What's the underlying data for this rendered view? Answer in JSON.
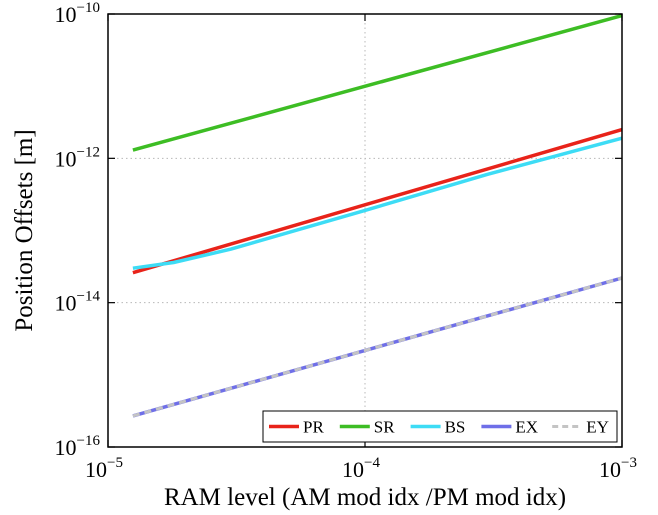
{
  "chart_data": {
    "type": "line",
    "xlabel": "RAM level (AM mod idx /PM mod idx)",
    "ylabel": "Position Offsets [m]",
    "xscale": "log",
    "yscale": "log",
    "xlim": [
      1e-05,
      0.001
    ],
    "ylim": [
      1e-16,
      1e-10
    ],
    "grid": true,
    "legend_position": "bottom-right",
    "x_ticks": [
      {
        "value": 1e-05,
        "base": "10",
        "exp": "−5"
      },
      {
        "value": 0.0001,
        "base": "10",
        "exp": "−4"
      },
      {
        "value": 0.001,
        "base": "10",
        "exp": "−3"
      }
    ],
    "y_ticks": [
      {
        "value": 1e-16,
        "base": "10",
        "exp": "−16"
      },
      {
        "value": 1e-14,
        "base": "10",
        "exp": "−14"
      },
      {
        "value": 1e-12,
        "base": "10",
        "exp": "−12"
      },
      {
        "value": 1e-10,
        "base": "10",
        "exp": "−10"
      }
    ],
    "series": [
      {
        "name": "PR",
        "color": "#e8231a",
        "dash": false,
        "x": [
          1.25e-05,
          0.001
        ],
        "y": [
          2.6e-14,
          2.5e-12
        ]
      },
      {
        "name": "SR",
        "color": "#3dbd24",
        "dash": false,
        "x": [
          1.25e-05,
          0.001
        ],
        "y": [
          1.3e-12,
          9.5e-11
        ]
      },
      {
        "name": "BS",
        "color": "#3ddcf5",
        "dash": false,
        "x": [
          1.25e-05,
          1.8e-05,
          3e-05,
          0.0001,
          0.0003,
          0.001
        ],
        "y": [
          3e-14,
          3.6e-14,
          5.5e-14,
          1.9e-13,
          6e-13,
          1.9e-12
        ]
      },
      {
        "name": "EX",
        "color": "#6f6fe8",
        "dash": false,
        "x": [
          1.25e-05,
          0.001
        ],
        "y": [
          2.7e-16,
          2.2e-14
        ]
      },
      {
        "name": "EY",
        "color": "#c4c4c4",
        "dash": true,
        "x": [
          1.25e-05,
          0.001
        ],
        "y": [
          2.7e-16,
          2.2e-14
        ]
      }
    ]
  }
}
